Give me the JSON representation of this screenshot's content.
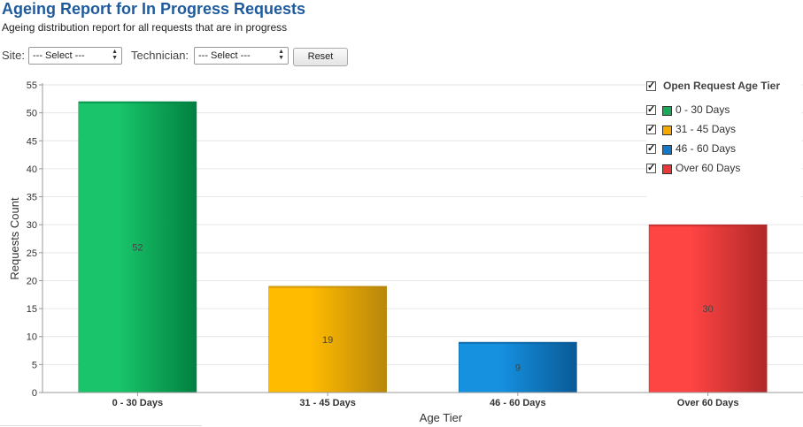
{
  "report": {
    "title": "Ageing Report for In Progress Requests",
    "subtitle": "Ageing distribution report for all requests that are in progress"
  },
  "filters": {
    "site_label": "Site:",
    "site_value": "--- Select ---",
    "technician_label": "Technician:",
    "technician_value": "--- Select ---",
    "reset_label": "Reset"
  },
  "legend": {
    "title": "Open Request Age Tier",
    "items": [
      {
        "label": "0 - 30 Days",
        "color": "#1aa85a"
      },
      {
        "label": "31 - 45 Days",
        "color": "#f5a800"
      },
      {
        "label": "46 - 60 Days",
        "color": "#1478c8"
      },
      {
        "label": "Over 60 Days",
        "color": "#e83838"
      }
    ]
  },
  "chart_data": {
    "type": "bar",
    "categories": [
      "0 - 30 Days",
      "31 - 45 Days",
      "46 - 60 Days",
      "Over 60 Days"
    ],
    "values": [
      52,
      19,
      9,
      30
    ],
    "data_labels": [
      "52",
      "19",
      "9",
      "30"
    ],
    "colors": [
      {
        "light": "#19c46a",
        "dark": "#008040"
      },
      {
        "light": "#ffbb00",
        "dark": "#b8860b"
      },
      {
        "light": "#1591e0",
        "dark": "#0a5a96"
      },
      {
        "light": "#ff4444",
        "dark": "#b02828"
      }
    ],
    "xlabel": "Age Tier",
    "ylabel": "Requests Count",
    "ylim": [
      0,
      55
    ],
    "yticks": [
      0,
      5,
      10,
      15,
      20,
      25,
      30,
      35,
      40,
      45,
      50,
      55
    ],
    "grid": true,
    "legend_position": "top-right"
  }
}
